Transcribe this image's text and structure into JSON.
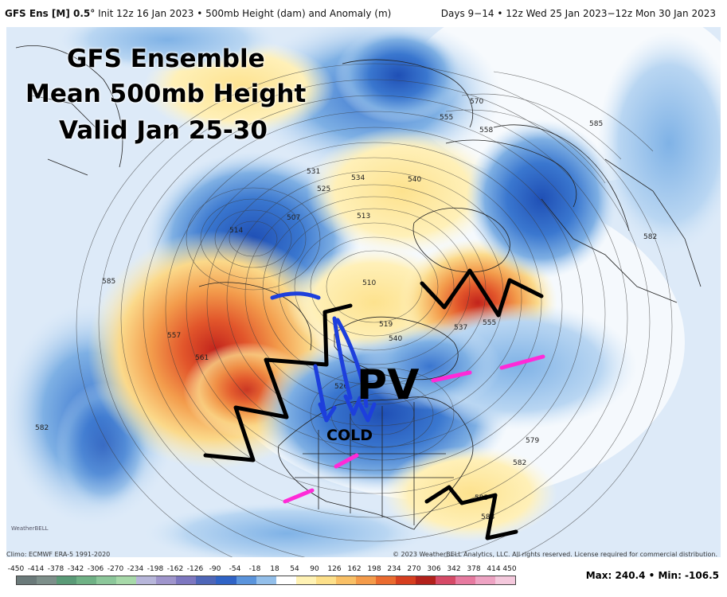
{
  "header": {
    "left_model": "GFS Ens [M] 0.5°",
    "left_rest": " Init 12z 16 Jan 2023 • 500mb Height (dam) and Anomaly (m)",
    "right": "Days 9−14 • 12z Wed 25 Jan 2023−12z Mon 30 Jan 2023"
  },
  "overlay_title": [
    "GFS Ensemble",
    "Mean 500mb Height",
    "Valid Jan 25-30"
  ],
  "annotations": {
    "pv": "PV",
    "cold": "COLD"
  },
  "contour_labels": [
    "531",
    "525",
    "534",
    "540",
    "507",
    "514",
    "510",
    "513",
    "585",
    "557",
    "561",
    "570",
    "558",
    "555",
    "585",
    "537",
    "555",
    "540",
    "582",
    "579",
    "582",
    "585",
    "588",
    "519",
    "526",
    "582"
  ],
  "logo": "WeatherBELL",
  "footer": {
    "climo": "Climo: ECMWF ERA-5 1991-2020",
    "copyright": "© 2023 WeatherBELL Analytics, LLC. All rights reserved. License required for commercial distribution.",
    "max_label": "Max: 240.4",
    "min_label": "Min: -106.5"
  },
  "colorbar": {
    "ticks": [
      "-450",
      "-414",
      "-378",
      "-342",
      "-306",
      "-270",
      "-234",
      "-198",
      "-162",
      "-126",
      "-90",
      "-54",
      "-18",
      "18",
      "54",
      "90",
      "126",
      "162",
      "198",
      "234",
      "270",
      "306",
      "342",
      "378",
      "414",
      "450"
    ],
    "colors": [
      "#6b7a7a",
      "#7d8f8a",
      "#5a9a77",
      "#6fb185",
      "#8cc79a",
      "#a7d9a9",
      "#b7b6da",
      "#9f95cc",
      "#7d77c0",
      "#4e66b8",
      "#2f63c6",
      "#5a94dc",
      "#93bfea",
      "#ffffff",
      "#fff2b4",
      "#fde08a",
      "#f9c066",
      "#f49b4a",
      "#ea6b2f",
      "#d63e1f",
      "#b3211b",
      "#d64a67",
      "#e77aa0",
      "#eea3c3",
      "#f4c8dc"
    ]
  }
}
